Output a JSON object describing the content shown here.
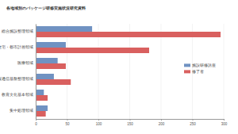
{
  "chart_data": {
    "type": "bar",
    "orientation": "horizontal",
    "title": "各地域別のパッケージ研修実施状況研究資料",
    "categories": [
      "総合施設整理領域",
      "住宅・都市計画領域",
      "医療領域",
      "情報通信基盤整理領域",
      "教育文化基本領域",
      "集中処理領域"
    ],
    "series": [
      {
        "name": "施設研修講座",
        "color": "#7092c2",
        "values": [
          90,
          48,
          35,
          29,
          13,
          19
        ]
      },
      {
        "name": "修了者",
        "color": "#d9605f",
        "values": [
          295,
          181,
          48,
          56,
          19,
          16
        ]
      }
    ],
    "xlim": [
      0,
      300
    ],
    "xticks": [
      0,
      50,
      100,
      150,
      200,
      250,
      300
    ],
    "grid": true,
    "legend": "right"
  }
}
